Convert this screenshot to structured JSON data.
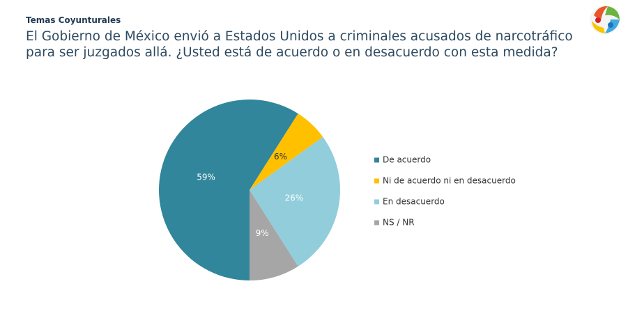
{
  "header": "Temas Coyunturales",
  "chart_data": {
    "type": "pie",
    "title": [
      "El Gobierno de México envió a Estados Unidos a criminales acusados de narcotráfico",
      "para ser juzgados allá. ¿Usted está de acuerdo o en desacuerdo con esta medida?"
    ],
    "categories": [
      "De acuerdo",
      "Ni de acuerdo ni en desacuerdo",
      "En desacuerdo",
      "NS / NR"
    ],
    "values": [
      59,
      6,
      26,
      9
    ],
    "value_labels": [
      "59%",
      "6%",
      "26%",
      "9%"
    ],
    "colors": [
      "#31869b",
      "#ffc000",
      "#92cddc",
      "#a6a6a6"
    ],
    "label_colors": [
      "#ffffff",
      "#333333",
      "#ffffff",
      "#ffffff"
    ],
    "legend": "right"
  }
}
